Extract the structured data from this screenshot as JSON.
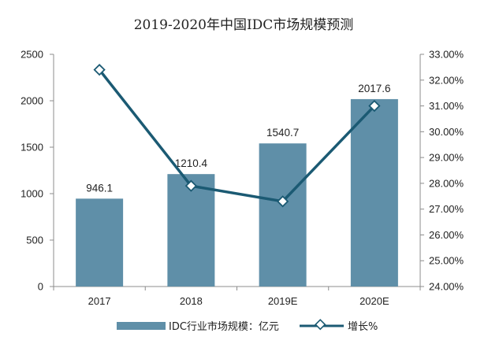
{
  "chart_data": {
    "type": "bar",
    "title": "2019-2020年中国IDC市场规模预测",
    "categories": [
      "2017",
      "2018",
      "2019E",
      "2020E"
    ],
    "series": [
      {
        "name": "IDC行业市场规模：亿元",
        "type": "bar",
        "axis": "left",
        "values": [
          946.1,
          1210.4,
          1540.7,
          2017.6
        ],
        "labels": [
          "946.1",
          "1210.4",
          "1540.7",
          "2017.6"
        ],
        "color": "#5f8fa8"
      },
      {
        "name": "增长%",
        "type": "line",
        "axis": "right",
        "values": [
          32.4,
          27.9,
          27.3,
          31.0
        ],
        "color": "#1b5a73"
      }
    ],
    "y_left": {
      "ylim": [
        0,
        2500
      ],
      "ticks": [
        0,
        500,
        1000,
        1500,
        2000,
        2500
      ],
      "tick_labels": [
        "0",
        "500",
        "1000",
        "1500",
        "2000",
        "2500"
      ]
    },
    "y_right": {
      "ylim": [
        24,
        33
      ],
      "ticks": [
        24,
        25,
        26,
        27,
        28,
        29,
        30,
        31,
        32,
        33
      ],
      "tick_labels": [
        "24.00%",
        "25.00%",
        "26.00%",
        "27.00%",
        "28.00%",
        "29.00%",
        "30.00%",
        "31.00%",
        "32.00%",
        "33.00%"
      ]
    },
    "grid": false,
    "legend_position": "bottom"
  }
}
